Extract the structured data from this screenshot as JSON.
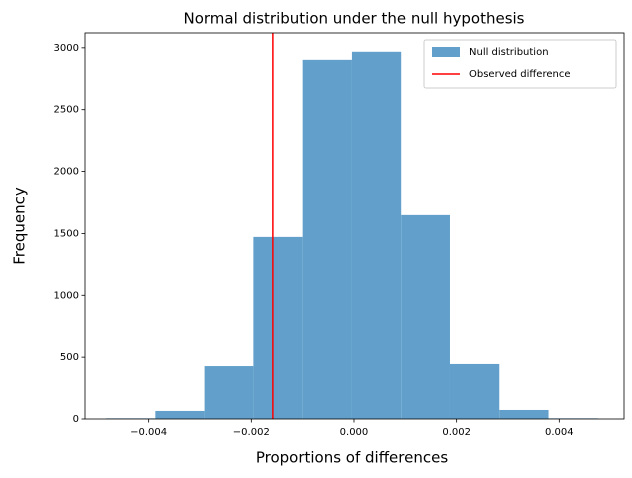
{
  "chart_data": {
    "type": "histogram",
    "title": "Normal distribution under the null hypothesis",
    "x_label": "Proportions of differences",
    "y_label": "Frequency",
    "bins": [
      -0.00483,
      -0.00387,
      -0.00291,
      -0.00196,
      -0.001,
      -4e-05,
      0.00092,
      0.00187,
      0.00283,
      0.00379,
      0.00475
    ],
    "series": [
      {
        "name": "Null distribution",
        "color": "#62a0cb",
        "values": [
          5,
          65,
          428,
          1472,
          2903,
          2968,
          1650,
          445,
          73,
          5
        ]
      }
    ],
    "vline": {
      "name": "Observed difference",
      "value": -0.00158,
      "color": "#ff0000"
    },
    "xlim": [
      -0.00524,
      0.00526
    ],
    "ylim": [
      0,
      3120
    ],
    "xticks": [
      {
        "value": -0.004,
        "label": "−0.004"
      },
      {
        "value": -0.002,
        "label": "−0.002"
      },
      {
        "value": 0,
        "label": "0.000"
      },
      0.002,
      0.004
    ],
    "yticks": [
      0,
      500,
      1000,
      1500,
      2000,
      2500,
      3000
    ],
    "legend": "upper right"
  }
}
